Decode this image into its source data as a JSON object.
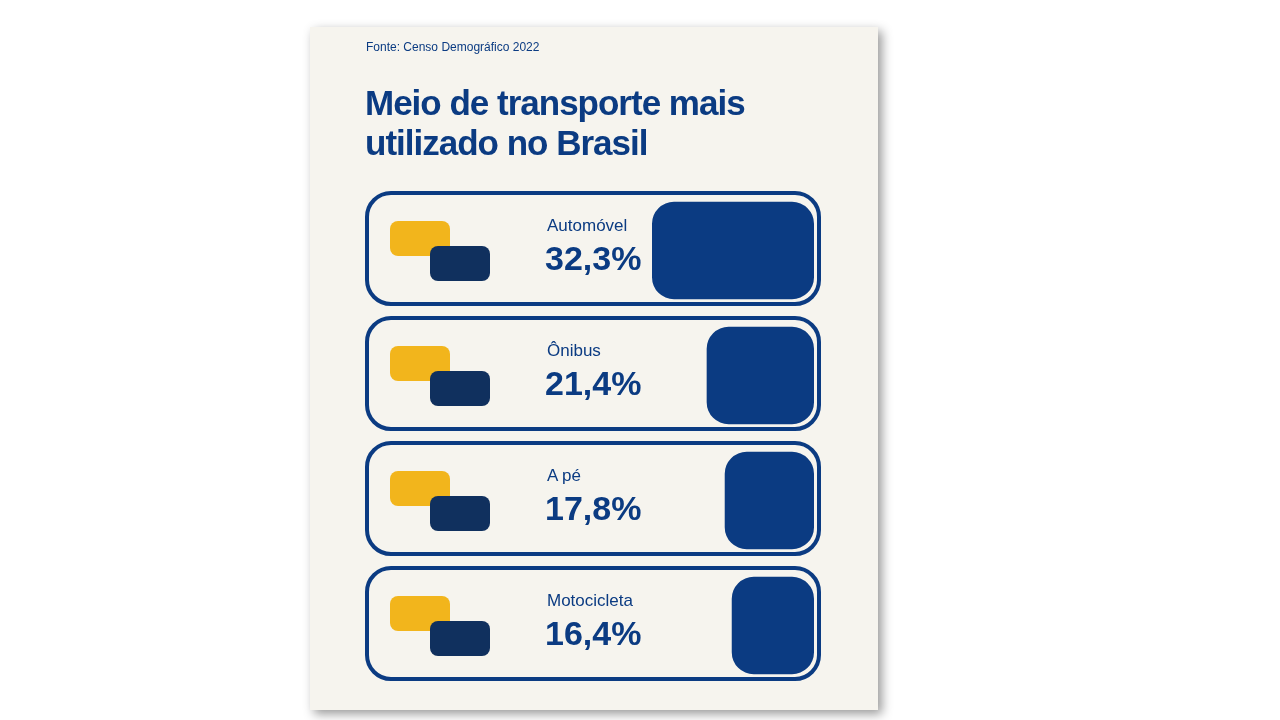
{
  "chart_data": {
    "type": "bar",
    "orientation": "horizontal",
    "title": "Meio de transporte mais utilizado no Brasil",
    "annotations": [
      "Fonte: Censo Demográfico 2022"
    ],
    "categories": [
      "Automóvel",
      "Ônibus",
      "A pé",
      "Motocicleta"
    ],
    "values": [
      32.3,
      21.4,
      17.8,
      16.4
    ],
    "value_labels": [
      "32,3%",
      "21,4%",
      "17,8%",
      "16,4%"
    ],
    "color": "#0b3b82"
  }
}
